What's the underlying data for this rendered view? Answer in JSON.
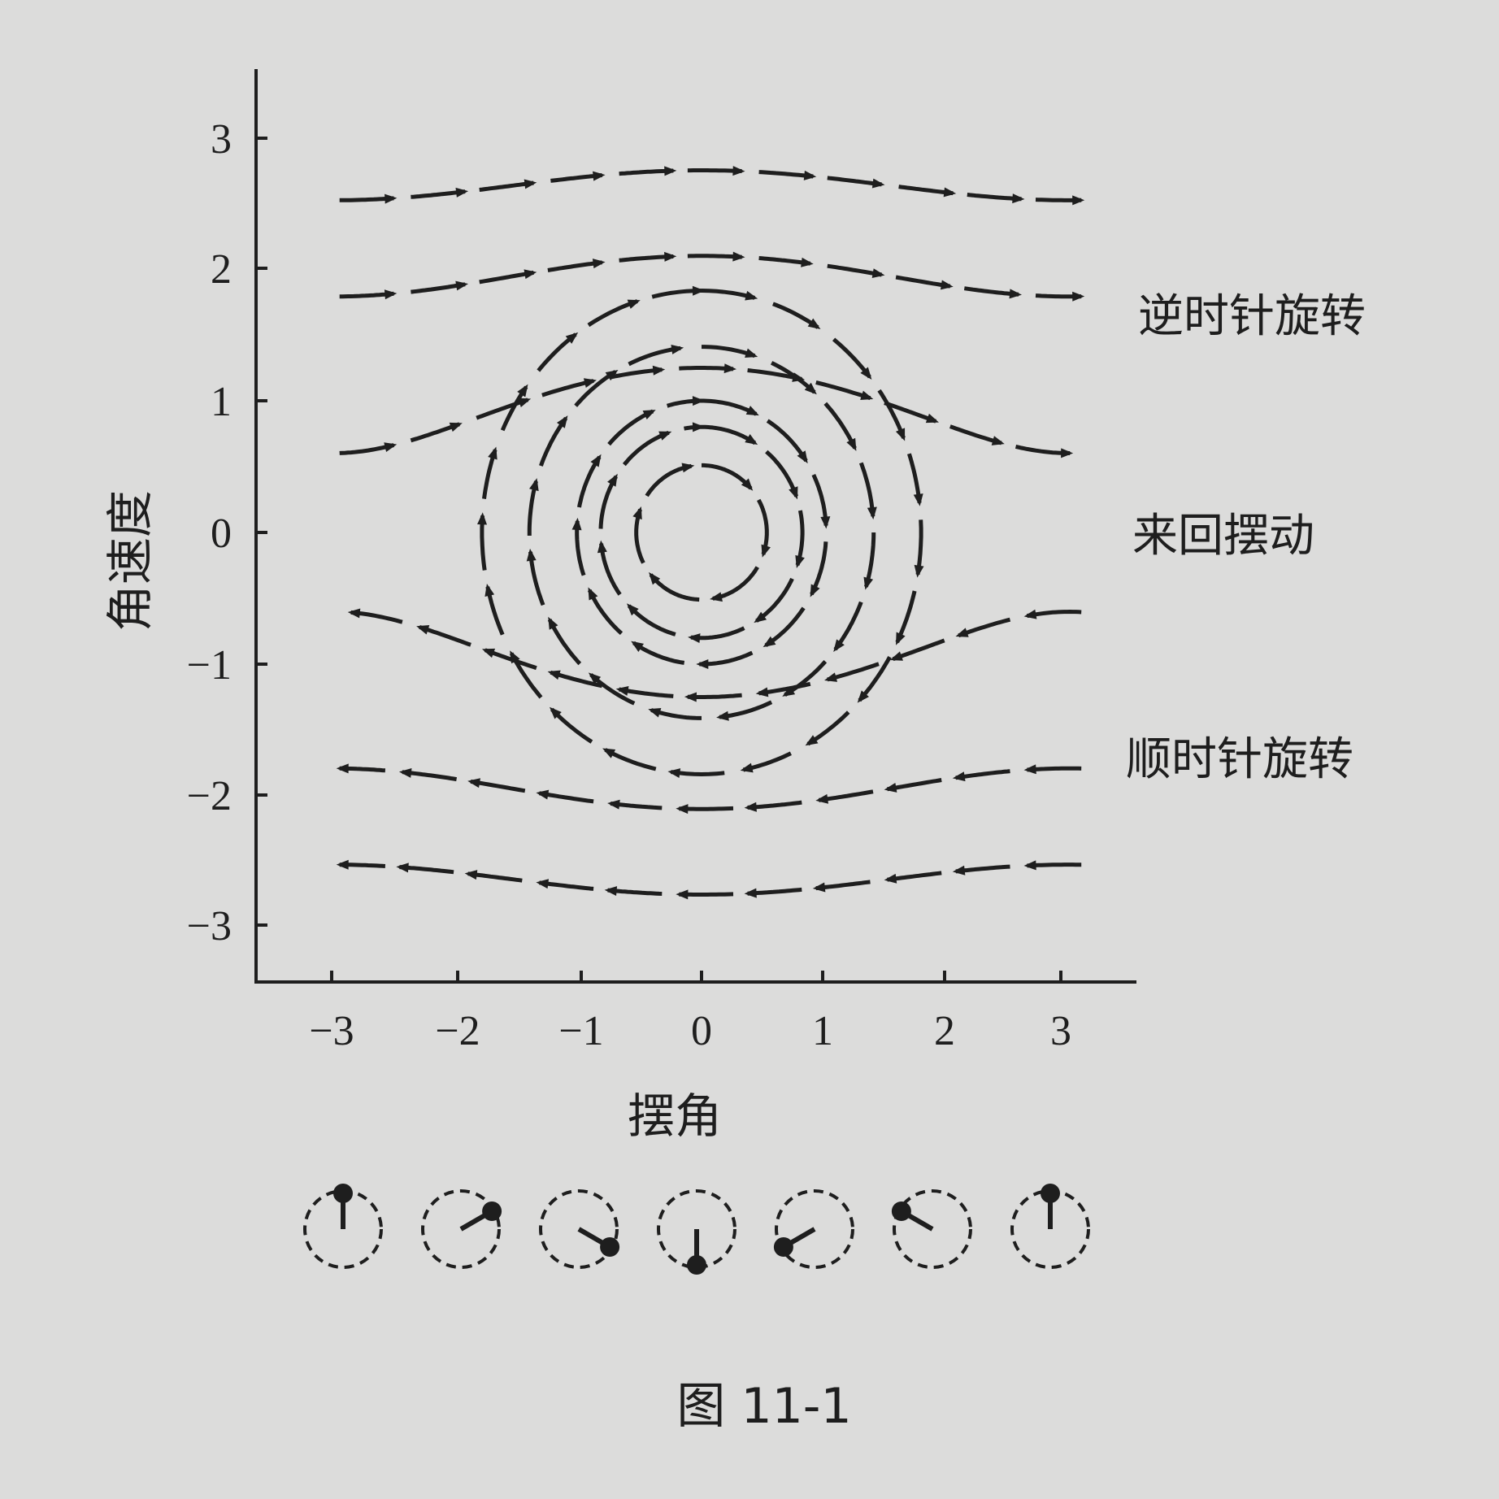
{
  "figure": {
    "caption": "图 11-1",
    "x_axis": {
      "label": "摆角",
      "ticks": [
        "−3",
        "−2",
        "−1",
        "0",
        "1",
        "2",
        "3"
      ]
    },
    "y_axis": {
      "label": "角速度",
      "ticks": [
        "3",
        "2",
        "1",
        "0",
        "−1",
        "−2",
        "−3"
      ]
    },
    "regions": {
      "counterclockwise": "逆时针旋转",
      "oscillation": "来回摆动",
      "clockwise": "顺时针旋转"
    },
    "pendulum_angles_deg": [
      180,
      120,
      60,
      0,
      -60,
      -120,
      180
    ]
  },
  "chart_data": {
    "type": "phase-portrait",
    "xlabel": "摆角",
    "ylabel": "角速度",
    "xlim": [
      -3.3,
      3.4
    ],
    "ylim": [
      -3.45,
      3.55
    ],
    "x_ticks": [
      -3,
      -2,
      -1,
      0,
      1,
      2,
      3
    ],
    "y_ticks": [
      -3,
      -2,
      -1,
      0,
      1,
      2,
      3
    ],
    "closed_orbits_amplitude": [
      0.55,
      0.85,
      1.05,
      1.45,
      1.85
    ],
    "open_orbits_energy_upper": [
      1.25,
      2.1,
      2.75
    ],
    "open_orbits_energy_lower": [
      1.25,
      2.1,
      2.75
    ],
    "open_orbit_shift": [
      0,
      0.3,
      0.6
    ],
    "flow_direction": "clockwise"
  }
}
